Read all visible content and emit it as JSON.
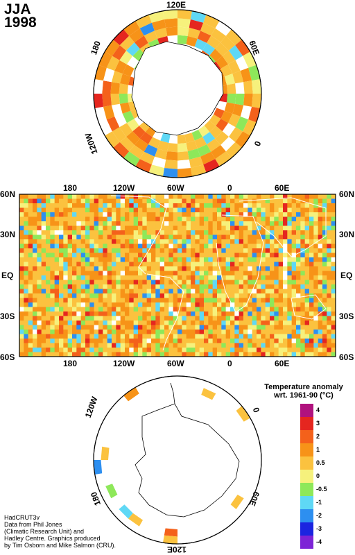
{
  "header": {
    "season": "JJA",
    "year": "1998"
  },
  "north_polar": {
    "labels": {
      "top": "120E",
      "left": "180",
      "right": "60E",
      "bottom_left": "120W",
      "bottom_right": "0"
    }
  },
  "equirect": {
    "top_lon_labels": [
      "180",
      "120W",
      "60W",
      "0",
      "60E"
    ],
    "bottom_lon_labels": [
      "180",
      "120W",
      "60W",
      "0",
      "60E"
    ],
    "lat_labels": [
      "60N",
      "30N",
      "EQ",
      "30S",
      "60S"
    ]
  },
  "south_polar": {
    "labels": {
      "top_left": "120W",
      "top_right": "0",
      "bottom_left": "180",
      "bottom_right": "60E",
      "bottom": "120E"
    }
  },
  "legend": {
    "title_line1": "Temperature anomaly",
    "title_line2": "wrt. 1961-90  (°C)",
    "bins": [
      {
        "label": "4",
        "color": "#b0127e"
      },
      {
        "label": "3",
        "color": "#e5261f"
      },
      {
        "label": "2",
        "color": "#f4611b"
      },
      {
        "label": "1",
        "color": "#f79318"
      },
      {
        "label": "0.5",
        "color": "#fbc23f"
      },
      {
        "label": "0",
        "color": "#f6f17c"
      },
      {
        "label": "-0.5",
        "color": "#8ee85a"
      },
      {
        "label": "-1",
        "color": "#5fd8f5"
      },
      {
        "label": "-2",
        "color": "#2d8ff0"
      },
      {
        "label": "-3",
        "color": "#1b24e0"
      },
      {
        "label": "-4",
        "color": "#7d23d6"
      }
    ]
  },
  "credit": {
    "text": "HadCRUT3v\nData from Phil Jones\n(Climatic Research Unit) and\nHadley Centre.  Graphics produced\nby Tim Osborn and Mike Salmon (CRU)."
  }
}
